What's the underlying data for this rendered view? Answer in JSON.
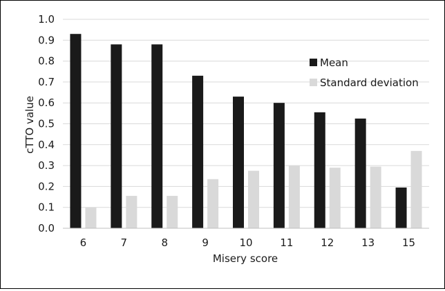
{
  "chart_data": {
    "type": "bar",
    "title": "",
    "xlabel": "Misery score",
    "ylabel": "cTTO value",
    "categories": [
      "6",
      "7",
      "8",
      "9",
      "10",
      "11",
      "12",
      "13",
      "15"
    ],
    "series": [
      {
        "name": "Mean",
        "color": "#1a1a1a",
        "values": [
          0.93,
          0.88,
          0.88,
          0.73,
          0.63,
          0.6,
          0.555,
          0.525,
          0.195
        ]
      },
      {
        "name": "Standard deviation",
        "color": "#d9d9d9",
        "values": [
          0.1,
          0.155,
          0.155,
          0.235,
          0.275,
          0.3,
          0.29,
          0.295,
          0.37
        ]
      }
    ],
    "ylim": [
      0,
      1.0
    ],
    "yticks": [
      "0.0",
      "0.1",
      "0.2",
      "0.3",
      "0.4",
      "0.5",
      "0.6",
      "0.7",
      "0.8",
      "0.9",
      "1.0"
    ],
    "grid": "horizontal",
    "legend_position": "right"
  }
}
